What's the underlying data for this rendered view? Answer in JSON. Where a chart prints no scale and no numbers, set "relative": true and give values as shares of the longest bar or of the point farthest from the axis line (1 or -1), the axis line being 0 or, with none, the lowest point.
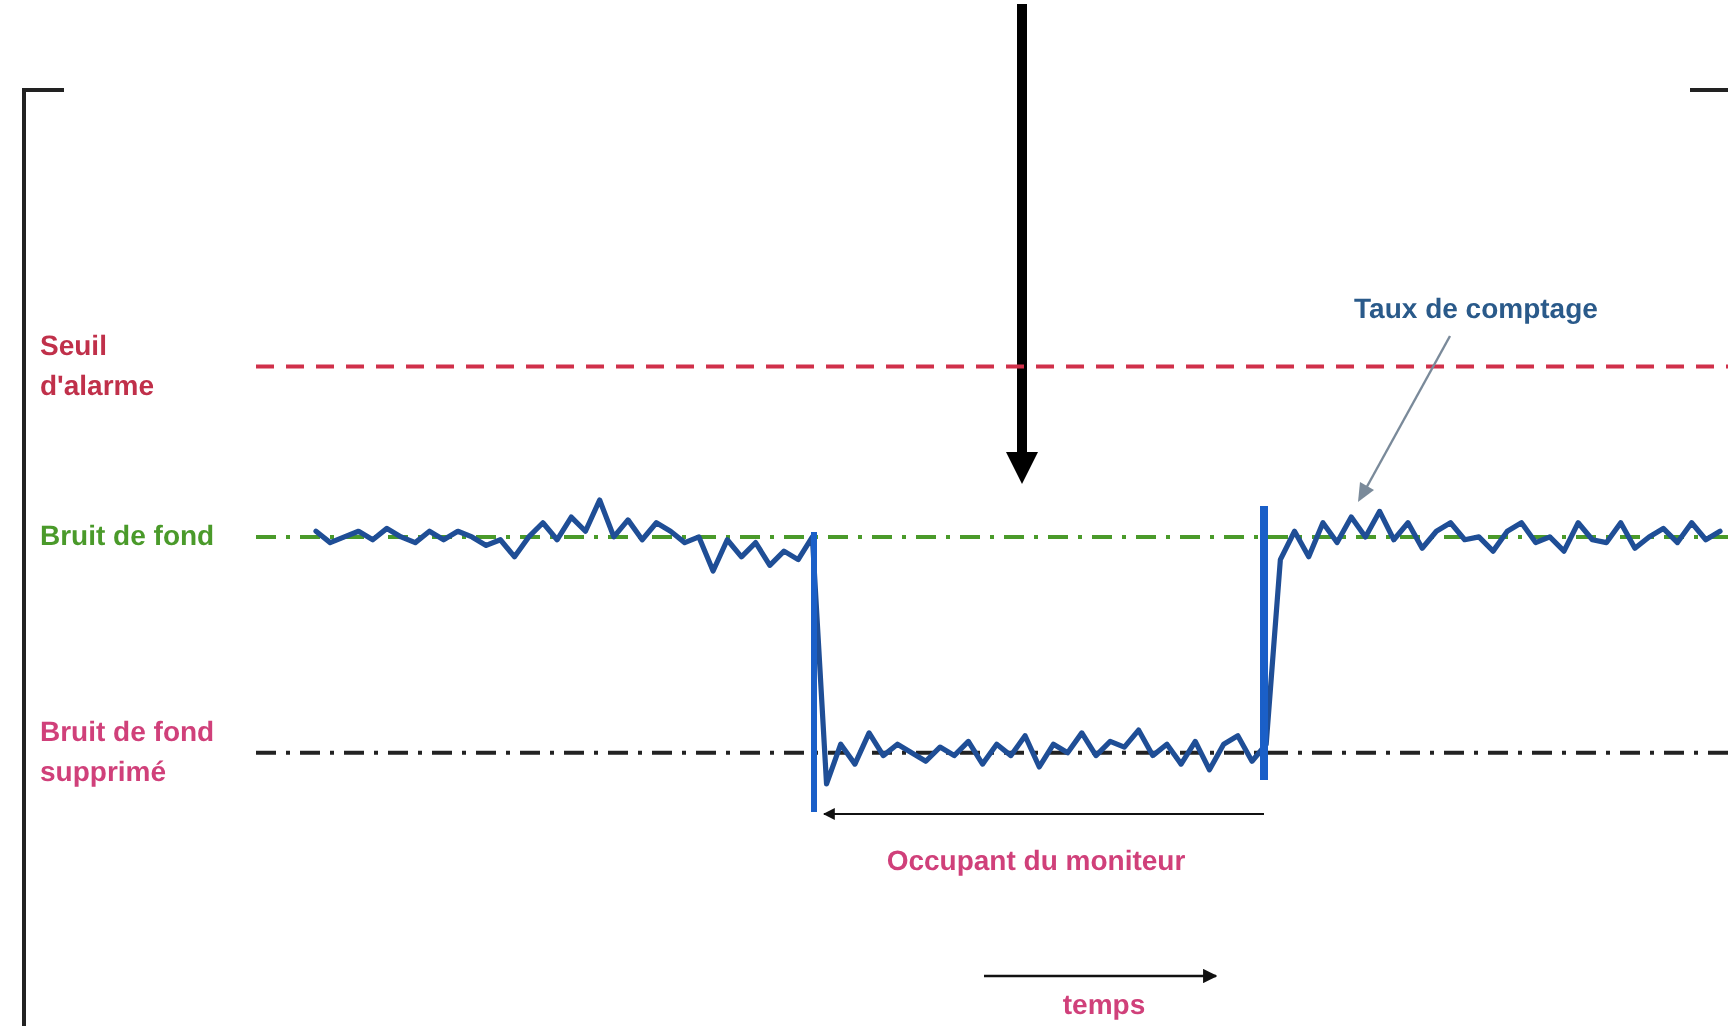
{
  "chart_data": {
    "type": "line",
    "relative": true,
    "categories": [
      null,
      null,
      null,
      null,
      null,
      null,
      null,
      null,
      null,
      null,
      null,
      null,
      null,
      null,
      null,
      null,
      null,
      null,
      null,
      null,
      null,
      null,
      null,
      null,
      null,
      null,
      null,
      null,
      null,
      null,
      null,
      null,
      null,
      null,
      null,
      null,
      null,
      null,
      null,
      null,
      null,
      null,
      null,
      null,
      null,
      null,
      null,
      null,
      null,
      null,
      null,
      null,
      null,
      null,
      null,
      null,
      null,
      null,
      null,
      null,
      null,
      null,
      null,
      null,
      null,
      null,
      null,
      null,
      null,
      null,
      null,
      null,
      null,
      null,
      null,
      null,
      null,
      null,
      null,
      null,
      null,
      null,
      null,
      null,
      null,
      null,
      null,
      null,
      null,
      null,
      null,
      null,
      null,
      null,
      null,
      null,
      null,
      null,
      null,
      null
    ],
    "series": [
      {
        "color": "#1f4e96",
        "values": [
          0.89,
          0.85,
          0.87,
          0.89,
          0.86,
          0.9,
          0.87,
          0.85,
          0.89,
          0.86,
          0.89,
          0.87,
          0.84,
          0.86,
          0.8,
          0.87,
          0.92,
          0.86,
          0.94,
          0.89,
          1.0,
          0.87,
          0.93,
          0.86,
          0.92,
          0.89,
          0.85,
          0.87,
          0.75,
          0.86,
          0.8,
          0.85,
          0.77,
          0.82,
          0.79,
          0.87,
          0.0,
          0.14,
          0.07,
          0.18,
          0.1,
          0.14,
          0.11,
          0.08,
          0.13,
          0.1,
          0.15,
          0.07,
          0.14,
          0.1,
          0.17,
          0.06,
          0.14,
          0.11,
          0.18,
          0.1,
          0.15,
          0.13,
          0.19,
          0.1,
          0.14,
          0.07,
          0.15,
          0.05,
          0.14,
          0.17,
          0.08,
          0.14,
          0.79,
          0.89,
          0.8,
          0.92,
          0.85,
          0.94,
          0.87,
          0.96,
          0.86,
          0.92,
          0.83,
          0.89,
          0.92,
          0.86,
          0.87,
          0.82,
          0.89,
          0.92,
          0.85,
          0.87,
          0.82,
          0.92,
          0.86,
          0.85,
          0.92,
          0.83,
          0.87,
          0.9,
          0.85,
          0.92,
          0.86,
          0.89
        ]
      }
    ],
    "ref_lines": [
      {
        "axis": "y",
        "value": 1.47,
        "label": "Seuil\nd'alarme",
        "color": "#d0304a",
        "line_style": "dashed"
      },
      {
        "axis": "y",
        "value": 0.87,
        "label": "Bruit de fond",
        "color": "#4a9a2a",
        "line_style": "dashdot"
      },
      {
        "axis": "y",
        "value": 0.11,
        "label": "Bruit de fond\nsupprimé",
        "color": "#222222",
        "line_style": "dashdot"
      }
    ],
    "annotations": [
      "Taux de comptage",
      "Occupant du moniteur",
      "temps"
    ]
  }
}
